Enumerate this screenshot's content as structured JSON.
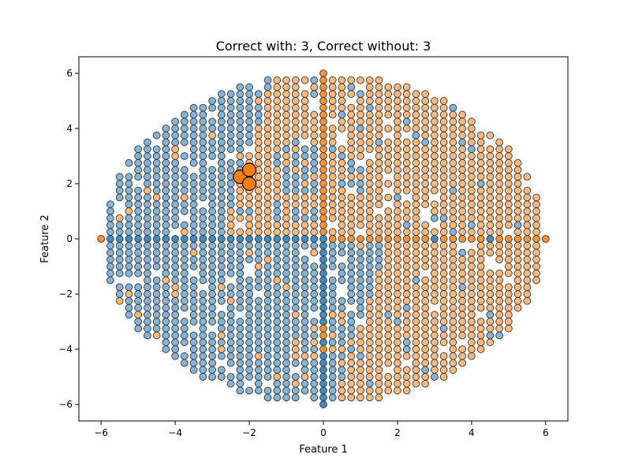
{
  "chart_data": {
    "type": "scatter",
    "title": "Correct with: 3, Correct without: 3",
    "xlabel": "Feature 1",
    "ylabel": "Feature 2",
    "xlim": [
      -6.6,
      6.6
    ],
    "ylim": [
      -6.6,
      6.6
    ],
    "xticks": [
      -6,
      -4,
      -2,
      0,
      2,
      4,
      6
    ],
    "yticks": [
      -6,
      -4,
      -2,
      0,
      2,
      4,
      6
    ],
    "grid": false,
    "grid_points": {
      "description": "dense grid of points filling a disc of radius 6, spacing 0.25, with densified rows along the axes",
      "radius": 6,
      "spacing": 0.25
    },
    "colors": {
      "class_0": "#1f77b4",
      "class_1": "#ff7f0e",
      "edge": "#333333"
    },
    "highlighted_points": [
      {
        "x": -2.25,
        "y": 2.25,
        "class": 1
      },
      {
        "x": -2.0,
        "y": 2.5,
        "class": 1
      },
      {
        "x": -2.0,
        "y": 2.0,
        "class": 1
      }
    ]
  }
}
